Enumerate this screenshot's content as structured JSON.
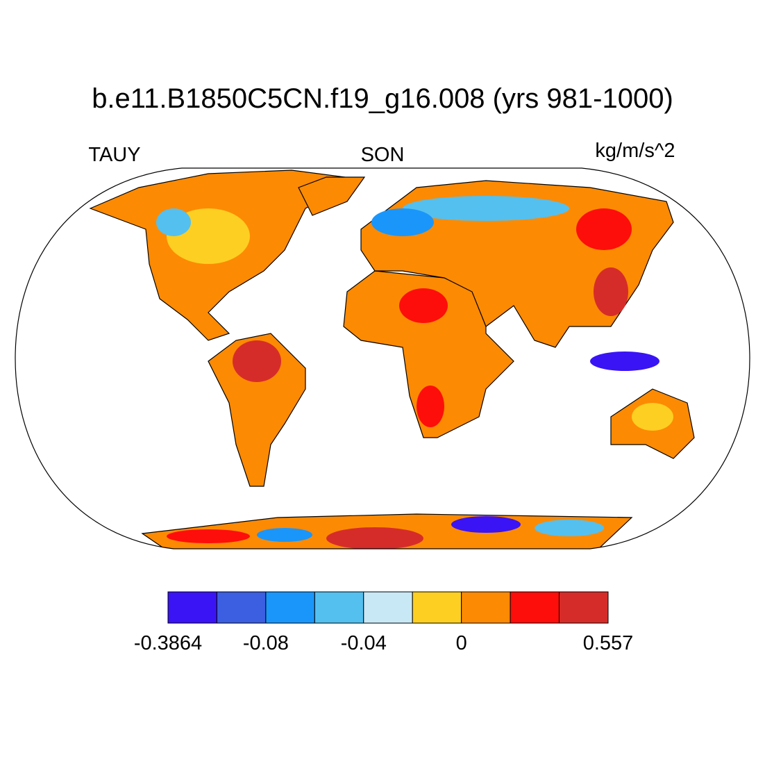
{
  "title": "b.e11.B1850C5CN.f19_g16.008 (yrs 981-1000)",
  "variable": "TAUY",
  "season": "SON",
  "units": "kg/m/s^2",
  "colorbar": {
    "colors": [
      "#3a14f5",
      "#3c5ee0",
      "#1a96fb",
      "#54c0f0",
      "#c8e8f6",
      "#fdcf22",
      "#fd8a03",
      "#fd0e0a",
      "#d62c29"
    ],
    "labels": [
      "-0.3864",
      "-0.08",
      "-0.04",
      "0",
      "0.557"
    ]
  }
}
